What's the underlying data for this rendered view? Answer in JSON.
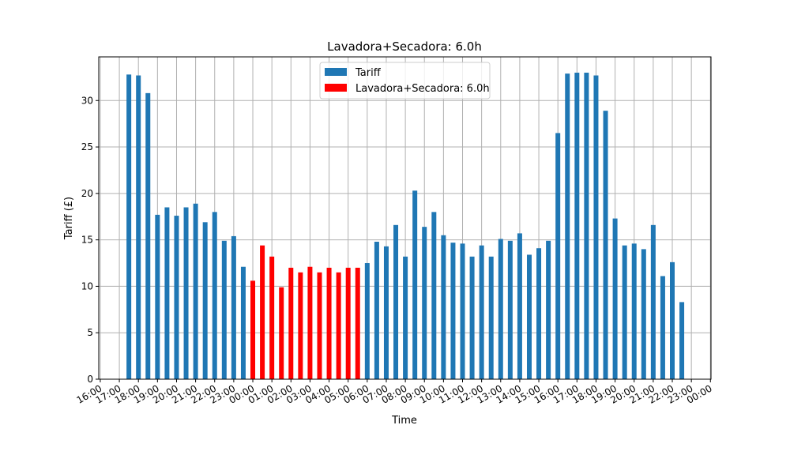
{
  "chart_data": {
    "type": "bar",
    "title": "Lavadora+Secadora: 6.0h",
    "xlabel": "Time",
    "ylabel": "Tariff (£)",
    "ylim": [
      0,
      34.7
    ],
    "yticks": [
      0,
      5,
      10,
      15,
      20,
      25,
      30
    ],
    "xticks": [
      "16:00",
      "17:00",
      "18:00",
      "19:00",
      "20:00",
      "21:00",
      "22:00",
      "23:00",
      "00:00",
      "01:00",
      "02:00",
      "03:00",
      "04:00",
      "05:00",
      "06:00",
      "07:00",
      "08:00",
      "09:00",
      "10:00",
      "11:00",
      "12:00",
      "13:00",
      "14:00",
      "15:00",
      "16:00",
      "17:00",
      "18:00",
      "19:00",
      "20:00",
      "21:00",
      "22:00",
      "23:00",
      "00:00"
    ],
    "grid": true,
    "legend_position": "top-center",
    "colors": {
      "tariff": "#1f77b4",
      "highlight": "#ff0000"
    },
    "series": [
      {
        "name": "Tariff",
        "color": "#1f77b4"
      },
      {
        "name": "Lavadora+Secadora: 6.0h",
        "color": "#ff0000"
      }
    ],
    "x_start": "17:30",
    "x_step_minutes": 30,
    "values": [
      32.8,
      32.7,
      30.8,
      17.7,
      18.5,
      17.6,
      18.5,
      18.9,
      16.9,
      18.0,
      14.9,
      15.4,
      12.1,
      10.6,
      14.4,
      13.2,
      9.9,
      12.0,
      11.5,
      12.1,
      11.5,
      12.0,
      11.5,
      12.0,
      12.0,
      12.5,
      14.8,
      14.3,
      16.6,
      13.2,
      20.3,
      16.4,
      18.0,
      15.5,
      14.7,
      14.6,
      13.2,
      14.4,
      13.2,
      15.1,
      14.9,
      15.7,
      13.4,
      14.1,
      14.9,
      26.5,
      32.9,
      33.0,
      33.0,
      32.7,
      28.9,
      17.3,
      14.4,
      14.6,
      14.0,
      16.6,
      11.1,
      12.6,
      8.3
    ],
    "highlight_range": [
      "00:00",
      "05:30"
    ]
  }
}
